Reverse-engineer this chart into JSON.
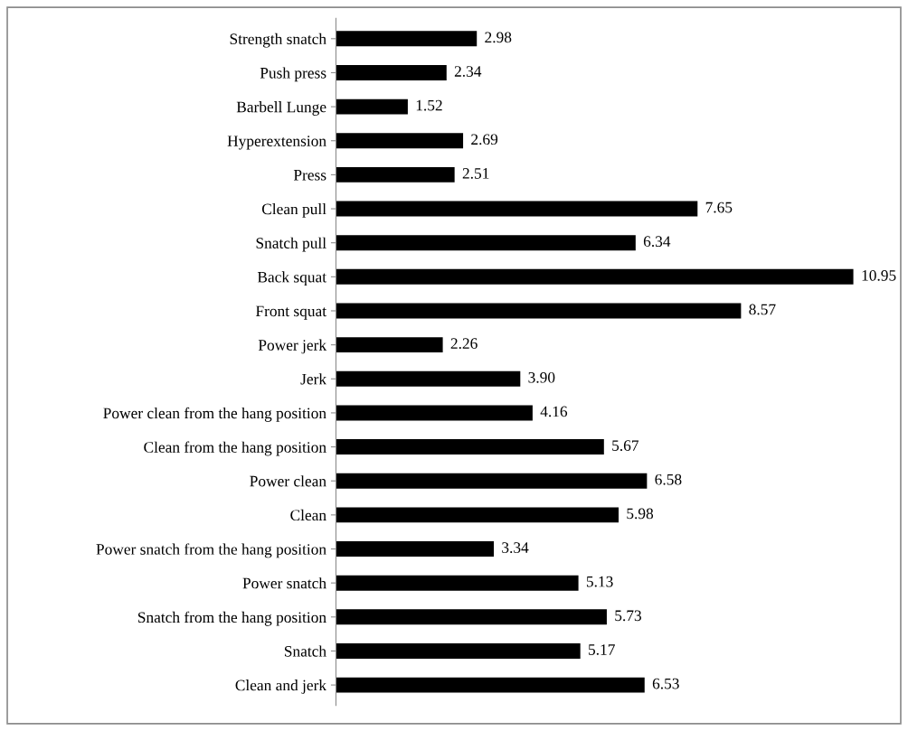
{
  "chart_data": {
    "type": "bar",
    "orientation": "horizontal",
    "data_labels": true,
    "color": "#000000",
    "categories": [
      "Strength snatch",
      "Push press",
      "Barbell Lunge",
      "Hyperextension",
      "Press",
      "Clean pull",
      "Snatch pull",
      "Back squat",
      "Front squat",
      "Power jerk",
      "Jerk",
      "Power clean from the hang position",
      "Clean from the hang position",
      "Power clean",
      "Clean",
      "Power snatch from the hang position",
      "Power snatch",
      "Snatch from the hang position",
      "Snatch",
      "Clean and jerk"
    ],
    "values": [
      2.98,
      2.34,
      1.52,
      2.69,
      2.51,
      7.65,
      6.34,
      10.95,
      8.57,
      2.26,
      3.9,
      4.16,
      5.67,
      6.58,
      5.98,
      3.34,
      5.13,
      5.73,
      5.17,
      6.53
    ],
    "value_labels": [
      "2.98",
      "2.34",
      "1.52",
      "2.69",
      "2.51",
      "7.65",
      "6.34",
      "10.95",
      "8.57",
      "2.26",
      "3.90",
      "4.16",
      "5.67",
      "6.58",
      "5.98",
      "3.34",
      "5.13",
      "5.73",
      "5.17",
      "6.53"
    ]
  }
}
